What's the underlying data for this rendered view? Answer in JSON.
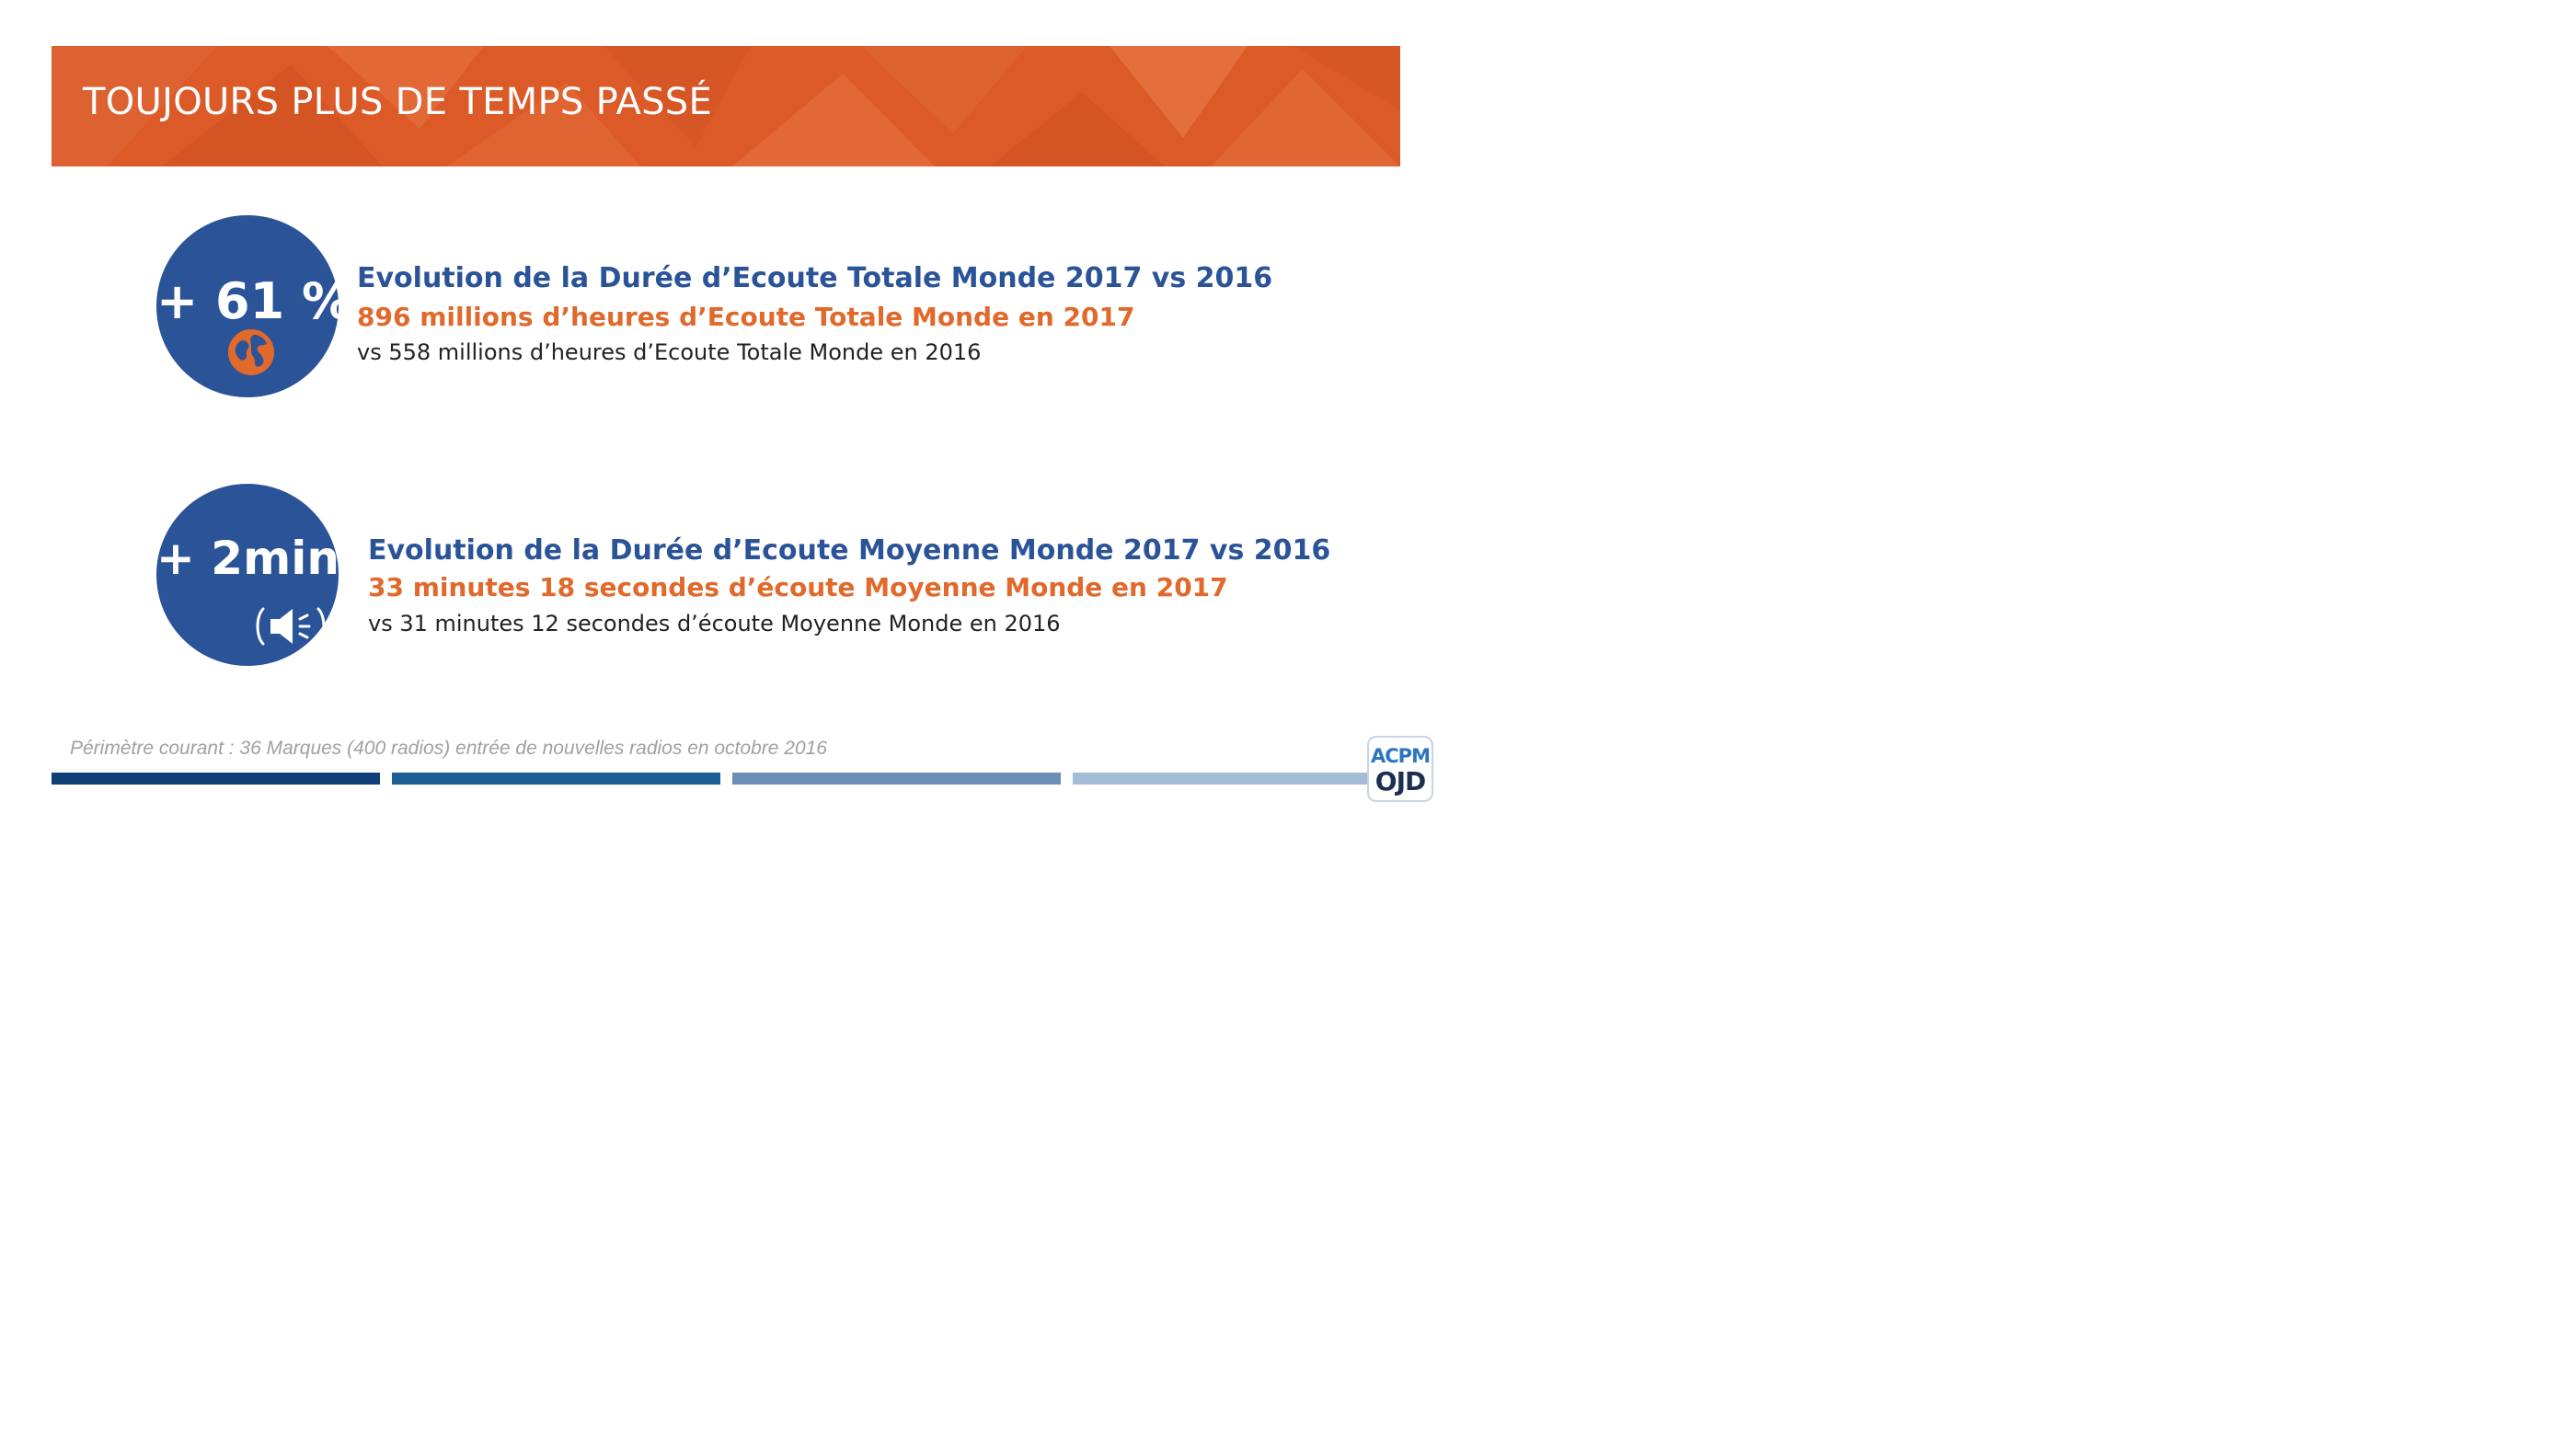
{
  "header": {
    "title": "TOUJOURS PLUS DE TEMPS PASSÉ",
    "background_color": "#dc5a28"
  },
  "stats": [
    {
      "value": "+ 61 %",
      "icon": "globe-icon",
      "circle_color": "#2a5398",
      "headline": "Evolution de la Durée d’Ecoute Totale Monde 2017 vs 2016",
      "highlight": "896 millions d’heures d’Ecoute Totale Monde en 2017",
      "comparison": "vs 558 millions d’heures d’Ecoute Totale Monde en 2016"
    },
    {
      "value": "+ 2min",
      "icon": "speaker-icon",
      "circle_color": "#2a5398",
      "headline": "Evolution de la Durée d’Ecoute Moyenne Monde 2017 vs 2016",
      "highlight": "33 minutes 18 secondes d’écoute Moyenne Monde en 2017",
      "comparison": "vs 31 minutes 12 secondes d’écoute Moyenne Monde en 2016"
    }
  ],
  "footer": {
    "note": "Périmètre courant : 36 Marques (400 radios) entrée de nouvelles radios en octobre 2016",
    "bar_colors": [
      "#0f3f78",
      "#1a5f96",
      "#6b8fb8",
      "#a5bcd8"
    ],
    "logo_line1": "ACPM",
    "logo_line2": "OJD"
  },
  "colors": {
    "headline": "#2a5398",
    "accent": "#e0692b",
    "body_text": "#222222",
    "footnote": "#a0a0a0"
  }
}
